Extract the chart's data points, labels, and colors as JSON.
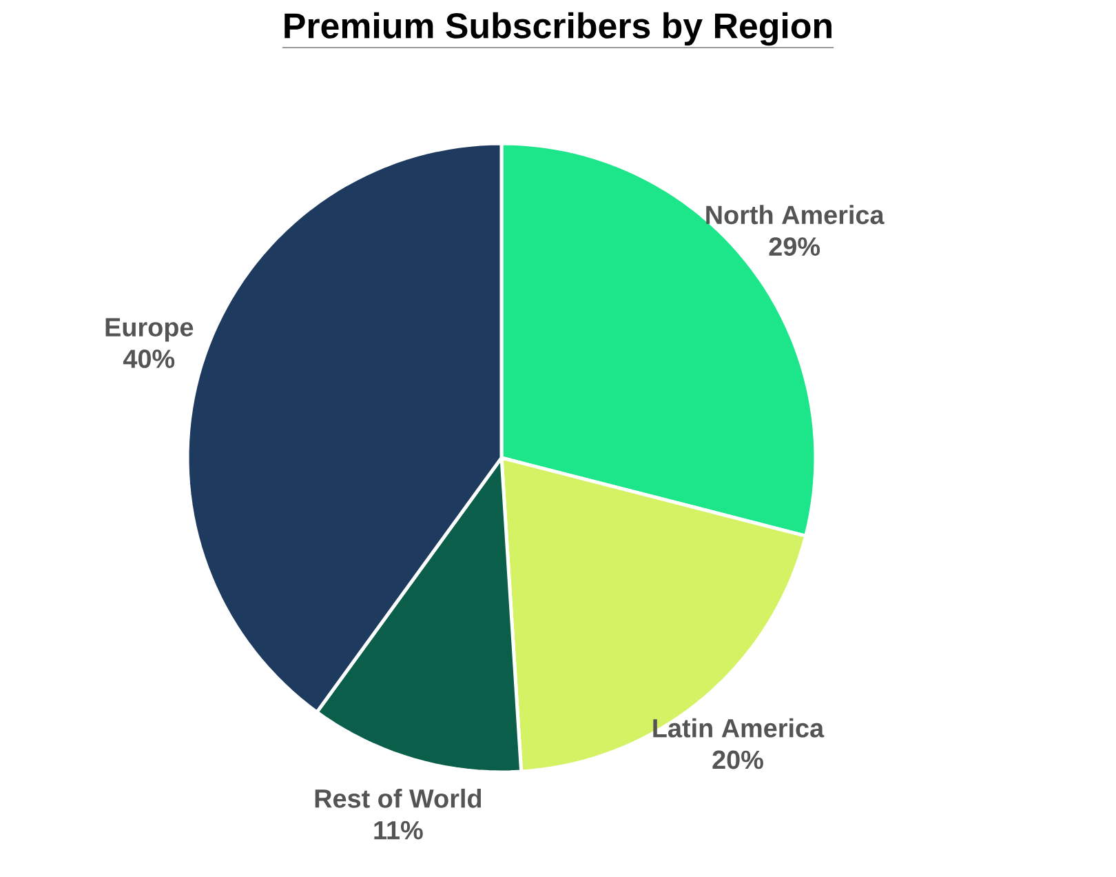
{
  "chart_data": {
    "type": "pie",
    "title": "Premium Subscribers by Region",
    "categories": [
      "North America",
      "Latin America",
      "Rest of World",
      "Europe"
    ],
    "values": [
      29,
      20,
      11,
      40
    ],
    "value_labels": [
      "29%",
      "20%",
      "11%",
      "40%"
    ],
    "colors": [
      "#1de58a",
      "#d4f264",
      "#0a5e4a",
      "#1e3a5f"
    ]
  }
}
